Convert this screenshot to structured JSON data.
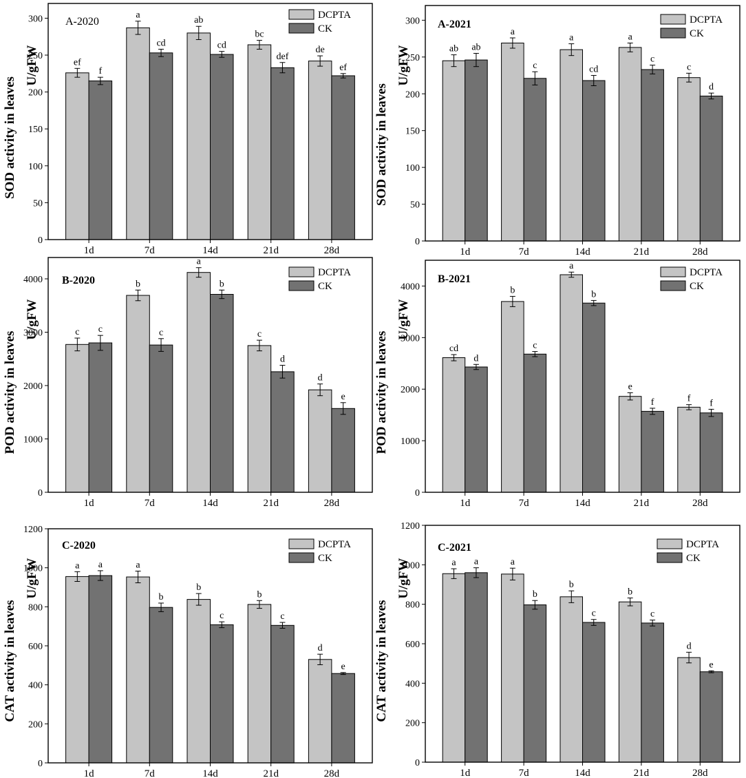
{
  "figure": {
    "series_names": [
      "DCPTA",
      "CK"
    ],
    "series_colors": [
      "#c4c4c4",
      "#727272"
    ]
  },
  "chart_data": [
    {
      "type": "bar",
      "title": "A-2020",
      "ylabel": "SOD activity in leaves",
      "unit": "U/gFW",
      "categories": [
        "1d",
        "7d",
        "14d",
        "21d",
        "28d"
      ],
      "ylim": [
        0,
        320
      ],
      "yticks": [
        0,
        50,
        100,
        150,
        200,
        250,
        300
      ],
      "series": [
        {
          "name": "DCPTA",
          "values": [
            226,
            287,
            280,
            264,
            242
          ],
          "errors": [
            6,
            9,
            9,
            6,
            7
          ],
          "labels": [
            "ef",
            "a",
            "ab",
            "bc",
            "de"
          ]
        },
        {
          "name": "CK",
          "values": [
            215,
            253,
            251,
            233,
            222
          ],
          "errors": [
            5,
            5,
            4,
            7,
            3
          ],
          "labels": [
            "f",
            "cd",
            "cd",
            "def",
            "ef"
          ]
        }
      ]
    },
    {
      "type": "bar",
      "title": "A-2021",
      "ylabel": "SOD activity in leaves",
      "unit": "U/gFW",
      "categories": [
        "1d",
        "7d",
        "14d",
        "21d",
        "28d"
      ],
      "ylim": [
        0,
        320
      ],
      "yticks": [
        0,
        50,
        100,
        150,
        200,
        250,
        300
      ],
      "series": [
        {
          "name": "DCPTA",
          "values": [
            245,
            269,
            260,
            263,
            222
          ],
          "errors": [
            8,
            7,
            8,
            6,
            6
          ],
          "labels": [
            "ab",
            "a",
            "a",
            "a",
            "c"
          ]
        },
        {
          "name": "CK",
          "values": [
            246,
            221,
            218,
            233,
            197
          ],
          "errors": [
            9,
            9,
            7,
            6,
            4
          ],
          "labels": [
            "ab",
            "c",
            "cd",
            "c",
            "d"
          ]
        }
      ]
    },
    {
      "type": "bar",
      "title": "B-2020",
      "ylabel": "POD activity in leaves",
      "unit": "U/gFW",
      "categories": [
        "1d",
        "7d",
        "14d",
        "21d",
        "28d"
      ],
      "ylim": [
        0,
        4400
      ],
      "yticks": [
        0,
        1000,
        2000,
        3000,
        4000
      ],
      "series": [
        {
          "name": "DCPTA",
          "values": [
            2770,
            3690,
            4120,
            2750,
            1920
          ],
          "errors": [
            120,
            100,
            90,
            100,
            110
          ],
          "labels": [
            "c",
            "b",
            "a",
            "c",
            "d"
          ]
        },
        {
          "name": "CK",
          "values": [
            2800,
            2760,
            3710,
            2260,
            1570
          ],
          "errors": [
            140,
            120,
            80,
            120,
            110
          ],
          "labels": [
            "c",
            "c",
            "b",
            "d",
            "e"
          ]
        }
      ]
    },
    {
      "type": "bar",
      "title": "B-2021",
      "ylabel": "POD activity in leaves",
      "unit": "U/gFW",
      "categories": [
        "1d",
        "7d",
        "14d",
        "21d",
        "28d"
      ],
      "ylim": [
        0,
        4500
      ],
      "yticks": [
        0,
        1000,
        2000,
        3000,
        4000
      ],
      "series": [
        {
          "name": "DCPTA",
          "values": [
            2610,
            3700,
            4220,
            1860,
            1650
          ],
          "errors": [
            60,
            100,
            50,
            70,
            50
          ],
          "labels": [
            "cd",
            "b",
            "a",
            "e",
            "f"
          ]
        },
        {
          "name": "CK",
          "values": [
            2430,
            2680,
            3670,
            1570,
            1540
          ],
          "errors": [
            50,
            50,
            50,
            60,
            70
          ],
          "labels": [
            "d",
            "c",
            "b",
            "f",
            "f"
          ]
        }
      ]
    },
    {
      "type": "bar",
      "title": "C-2020",
      "ylabel": "CAT activity in leaves",
      "unit": "U/gFW",
      "categories": [
        "1d",
        "7d",
        "14d",
        "21d",
        "28d"
      ],
      "ylim": [
        0,
        1200
      ],
      "yticks": [
        0,
        200,
        400,
        600,
        800,
        1000,
        1200
      ],
      "series": [
        {
          "name": "DCPTA",
          "values": [
            955,
            953,
            838,
            812,
            530
          ],
          "errors": [
            25,
            30,
            30,
            20,
            27
          ],
          "labels": [
            "a",
            "a",
            "b",
            "b",
            "d"
          ]
        },
        {
          "name": "CK",
          "values": [
            960,
            797,
            708,
            705,
            458
          ],
          "errors": [
            25,
            22,
            15,
            15,
            5
          ],
          "labels": [
            "a",
            "b",
            "c",
            "c",
            "e"
          ]
        }
      ]
    },
    {
      "type": "bar",
      "title": "C-2021",
      "ylabel": "CAT activity in leaves",
      "unit": "U/gFW",
      "categories": [
        "1d",
        "7d",
        "14d",
        "21d",
        "28d"
      ],
      "ylim": [
        0,
        1200
      ],
      "yticks": [
        0,
        200,
        400,
        600,
        800,
        1000,
        1200
      ],
      "series": [
        {
          "name": "DCPTA",
          "values": [
            955,
            953,
            838,
            812,
            530
          ],
          "errors": [
            25,
            30,
            30,
            20,
            27
          ],
          "labels": [
            "a",
            "a",
            "b",
            "b",
            "d"
          ]
        },
        {
          "name": "CK",
          "values": [
            960,
            797,
            708,
            705,
            458
          ],
          "errors": [
            25,
            22,
            15,
            15,
            5
          ],
          "labels": [
            "a",
            "b",
            "c",
            "c",
            "e"
          ]
        }
      ]
    }
  ]
}
